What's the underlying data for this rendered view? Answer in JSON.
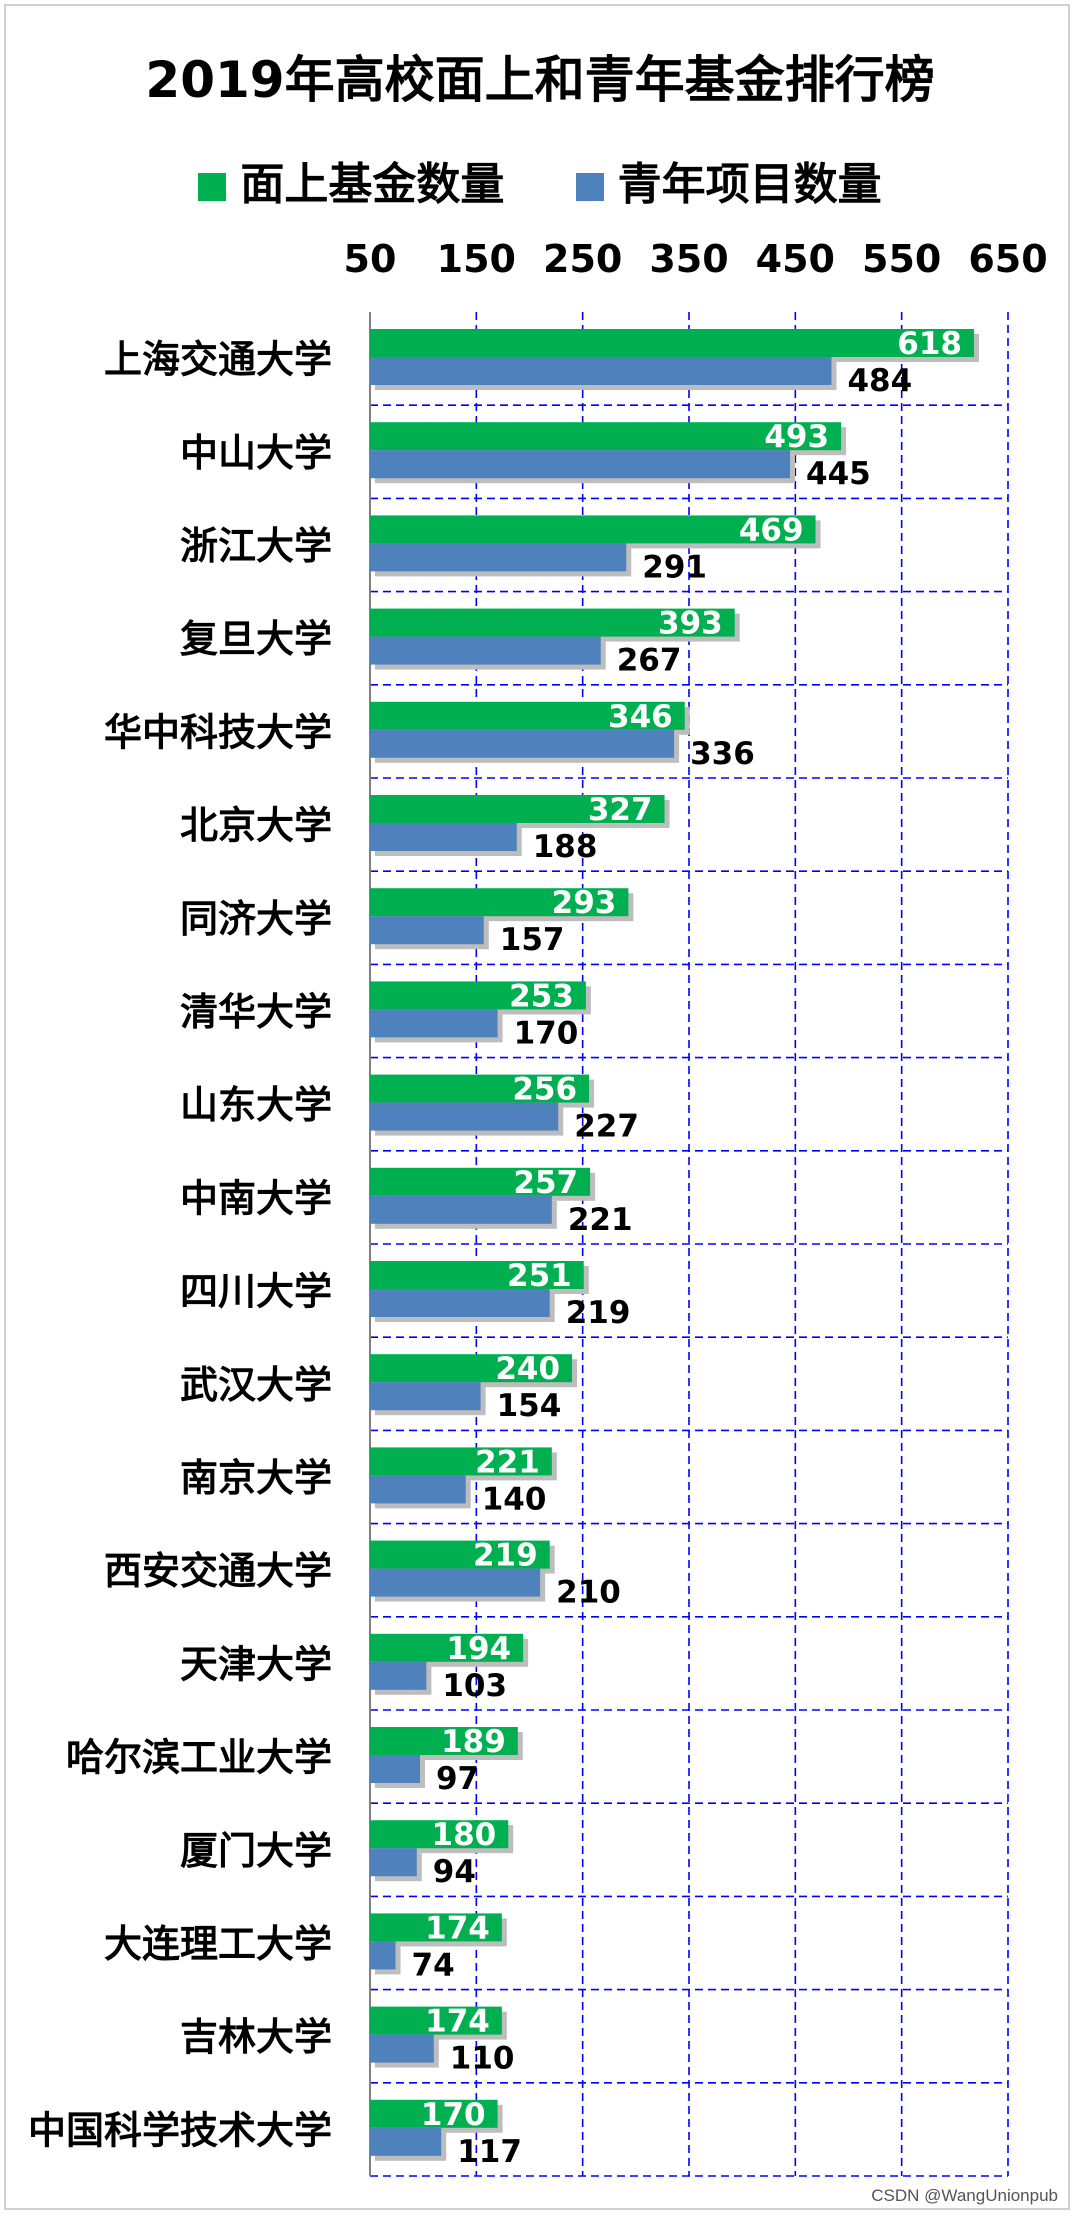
{
  "chart_data": {
    "type": "bar",
    "orientation": "horizontal",
    "title": "2019年高校面上和青年基金排行榜",
    "xlabel": "",
    "ylabel": "",
    "xlim": [
      50,
      650
    ],
    "xticks": [
      50,
      150,
      250,
      350,
      450,
      550,
      650
    ],
    "axis_position": "top",
    "grid": true,
    "legend_position": "top",
    "categories": [
      "上海交通大学",
      "中山大学",
      "浙江大学",
      "复旦大学",
      "华中科技大学",
      "北京大学",
      "同济大学",
      "清华大学",
      "山东大学",
      "中南大学",
      "四川大学",
      "武汉大学",
      "南京大学",
      "西安交通大学",
      "天津大学",
      "哈尔滨工业大学",
      "厦门大学",
      "大连理工大学",
      "吉林大学",
      "中国科学技术大学"
    ],
    "series": [
      {
        "name": "面上基金数量",
        "color": "#00b050",
        "values": [
          618,
          493,
          469,
          393,
          346,
          327,
          293,
          253,
          256,
          257,
          251,
          240,
          221,
          219,
          194,
          189,
          180,
          174,
          174,
          170
        ]
      },
      {
        "name": "青年项目数量",
        "color": "#4f81bd",
        "values": [
          484,
          445,
          291,
          267,
          336,
          188,
          157,
          170,
          227,
          221,
          219,
          154,
          140,
          210,
          103,
          97,
          94,
          74,
          110,
          117
        ]
      }
    ]
  },
  "watermark": "CSDN @WangUnionpub",
  "colors": {
    "grid": "#0000ff",
    "axis": "#808080",
    "label_on_bar": "#ffffff",
    "label_outside": "#000000"
  }
}
